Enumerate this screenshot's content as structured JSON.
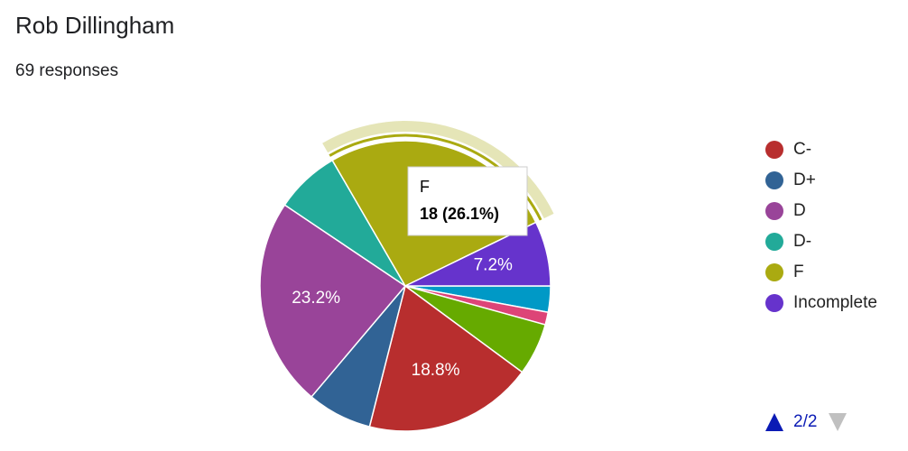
{
  "chart_data": {
    "type": "pie",
    "title": "Rob Dillingham",
    "subtitle": "69 responses",
    "categories": [
      null,
      null,
      null,
      "C-",
      "D+",
      "D",
      "D-",
      "F",
      "Incomplete"
    ],
    "values": [
      2.9,
      1.4,
      5.8,
      18.8,
      7.2,
      23.2,
      7.2,
      26.1,
      7.2
    ],
    "value_labels": [
      null,
      null,
      null,
      "18.8%",
      null,
      "23.2%",
      null,
      null,
      "7.2%"
    ],
    "colors": [
      "#0099c6",
      "#dd4477",
      "#66aa00",
      "#b82e2e",
      "#316395",
      "#994499",
      "#22aa99",
      "#aaaa11",
      "#6633cc"
    ],
    "tooltip": {
      "label": "F",
      "text": "18 (26.1%)"
    },
    "legend_page": "2/2"
  }
}
